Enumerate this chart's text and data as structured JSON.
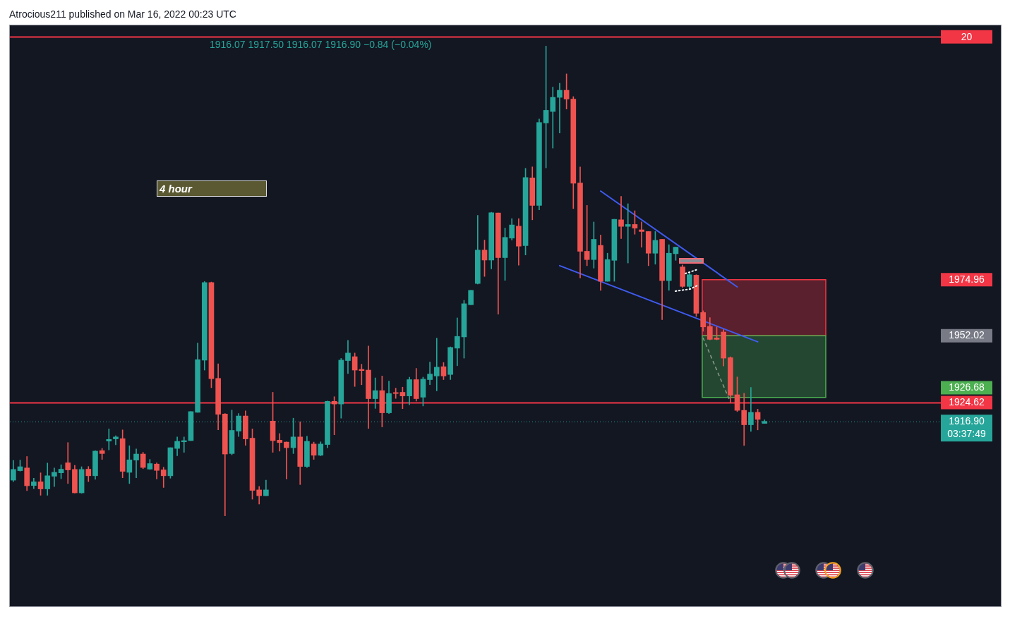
{
  "chart_data": {
    "type": "candlestick",
    "title": "Atrocious211 published on Mar 16, 2022 00:23 UTC",
    "categories": [
      null,
      null,
      null,
      null,
      null,
      null,
      null,
      null,
      null,
      null,
      null,
      null,
      null,
      null,
      null,
      null,
      null,
      null,
      null,
      null,
      null,
      null,
      null,
      null,
      null,
      null,
      null,
      null,
      null,
      null,
      null,
      null,
      null,
      null,
      null,
      null,
      null,
      null,
      null,
      null,
      null,
      null,
      null,
      null,
      null,
      null,
      null,
      null,
      null,
      null,
      null,
      null,
      null,
      null,
      null,
      null,
      null,
      null,
      null,
      null,
      null,
      null,
      null,
      null,
      null,
      null,
      null,
      null,
      null,
      null,
      null,
      null,
      null,
      null,
      null,
      null,
      null,
      null,
      null,
      null,
      null,
      null,
      null,
      null,
      null,
      null,
      null,
      null,
      null,
      null,
      null,
      null,
      null,
      null,
      null,
      null,
      null,
      null,
      null,
      null,
      null,
      null,
      null,
      null,
      null,
      null,
      null,
      null,
      null,
      null,
      null,
      null,
      null,
      null,
      null,
      null,
      null,
      null,
      null,
      null,
      null,
      null,
      null,
      null,
      null,
      null,
      null,
      null,
      null,
      null,
      null,
      null,
      null,
      null,
      null,
      null
    ],
    "ohlc": [
      [
        1892.8,
        1900.9,
        1892.2,
        1897.2
      ],
      [
        1896.7,
        1901.0,
        1896.5,
        1898.3
      ],
      [
        1897.8,
        1902.5,
        1888.5,
        1890.5
      ],
      [
        1890.6,
        1893.6,
        1889.3,
        1892.1
      ],
      [
        1892.1,
        1895.8,
        1886.6,
        1889.2
      ],
      [
        1889.2,
        1899.8,
        1886.6,
        1894.6
      ],
      [
        1894.4,
        1897.8,
        1890.2,
        1896.0
      ],
      [
        1895.8,
        1899.1,
        1893.4,
        1897.3
      ],
      [
        1899.9,
        1908.2,
        1891.4,
        1897.0
      ],
      [
        1897.2,
        1898.9,
        1887.5,
        1887.6
      ],
      [
        1887.6,
        1898.3,
        1887.4,
        1897.2
      ],
      [
        1897.3,
        1898.4,
        1892.2,
        1894.6
      ],
      [
        1894.6,
        1904.9,
        1893.1,
        1904.7
      ],
      [
        1904.9,
        1905.8,
        1901.3,
        1903.7
      ],
      [
        1908.8,
        1913.8,
        1905.2,
        1909.5
      ],
      [
        1909.7,
        1911.0,
        1907.3,
        1910.5
      ],
      [
        1909.8,
        1913.4,
        1893.8,
        1896.4
      ],
      [
        1896.0,
        1906.9,
        1891.4,
        1901.1
      ],
      [
        1901.0,
        1905.6,
        1893.8,
        1903.5
      ],
      [
        1903.5,
        1904.2,
        1897.5,
        1898.0
      ],
      [
        1897.3,
        1901.3,
        1897.2,
        1899.6
      ],
      [
        1899.4,
        1899.9,
        1893.3,
        1896.8
      ],
      [
        1897.0,
        1898.1,
        1889.8,
        1894.6
      ],
      [
        1894.6,
        1906.1,
        1893.6,
        1906.1
      ],
      [
        1905.8,
        1910.5,
        1902.8,
        1908.7
      ],
      [
        1908.5,
        1910.5,
        1904.2,
        1909.0
      ],
      [
        1909.0,
        1920.9,
        1909.0,
        1920.9
      ],
      [
        1920.6,
        1949.0,
        1920.6,
        1942.2
      ],
      [
        1942.0,
        1974.2,
        1937.9,
        1973.8
      ],
      [
        1973.8,
        1974.0,
        1930.7,
        1934.4
      ],
      [
        1934.5,
        1940.5,
        1913.4,
        1919.8
      ],
      [
        1919.9,
        1920.1,
        1878.2,
        1903.5
      ],
      [
        1903.7,
        1921.5,
        1903.2,
        1913.2
      ],
      [
        1912.9,
        1920.1,
        1910.7,
        1919.1
      ],
      [
        1919.1,
        1921.2,
        1907.1,
        1909.7
      ],
      [
        1910.0,
        1913.8,
        1885.0,
        1888.6
      ],
      [
        1888.8,
        1890.2,
        1883.0,
        1886.4
      ],
      [
        1886.4,
        1892.8,
        1886.4,
        1888.8
      ],
      [
        1917.0,
        1928.8,
        1904.2,
        1909.0
      ],
      [
        1909.2,
        1911.9,
        1904.7,
        1908.2
      ],
      [
        1908.4,
        1908.5,
        1893.3,
        1906.1
      ],
      [
        1906.1,
        1918.2,
        1903.7,
        1910.5
      ],
      [
        1910.5,
        1916.7,
        1891.0,
        1898.4
      ],
      [
        1898.4,
        1910.8,
        1898.0,
        1908.7
      ],
      [
        1907.6,
        1908.4,
        1901.3,
        1903.0
      ],
      [
        1903.0,
        1908.5,
        1902.8,
        1907.6
      ],
      [
        1907.4,
        1925.2,
        1906.1,
        1925.1
      ],
      [
        1925.1,
        1927.0,
        1911.4,
        1924.0
      ],
      [
        1924.0,
        1942.7,
        1918.2,
        1942.0
      ],
      [
        1941.8,
        1950.1,
        1936.5,
        1944.9
      ],
      [
        1943.4,
        1944.9,
        1931.2,
        1937.9
      ],
      [
        1938.2,
        1940.3,
        1931.9,
        1937.7
      ],
      [
        1937.9,
        1947.8,
        1914.0,
        1926.2
      ],
      [
        1926.2,
        1934.7,
        1922.2,
        1929.5
      ],
      [
        1929.5,
        1935.5,
        1914.6,
        1920.4
      ],
      [
        1920.4,
        1933.4,
        1920.1,
        1928.3
      ],
      [
        1928.7,
        1930.5,
        1926.3,
        1928.3
      ],
      [
        1928.8,
        1930.9,
        1922.1,
        1927.3
      ],
      [
        1927.3,
        1935.0,
        1923.7,
        1934.0
      ],
      [
        1934.0,
        1938.6,
        1925.2,
        1926.2
      ],
      [
        1926.8,
        1935.0,
        1923.2,
        1934.2
      ],
      [
        1934.0,
        1941.2,
        1931.9,
        1936.3
      ],
      [
        1935.5,
        1951.0,
        1929.4,
        1939.1
      ],
      [
        1939.3,
        1941.0,
        1934.0,
        1935.5
      ],
      [
        1936.1,
        1947.4,
        1934.0,
        1947.2
      ],
      [
        1946.9,
        1959.3,
        1939.7,
        1951.7
      ],
      [
        1951.5,
        1966.5,
        1942.8,
        1965.1
      ],
      [
        1964.7,
        1970.6,
        1964.7,
        1970.6
      ],
      [
        1973.4,
        2001.3,
        1973.2,
        1987.1
      ],
      [
        1987.1,
        1991.2,
        1976.3,
        1983.0
      ],
      [
        1983.0,
        2002.6,
        1979.4,
        2002.4
      ],
      [
        2002.3,
        2002.3,
        1960.8,
        1984.0
      ],
      [
        1984.0,
        1996.1,
        1974.7,
        1992.3
      ],
      [
        1992.0,
        2000.0,
        1991.2,
        1997.4
      ],
      [
        1996.9,
        2000.0,
        1980.9,
        1988.7
      ],
      [
        1988.9,
        2020.6,
        1985.1,
        2016.8
      ],
      [
        2016.7,
        2021.2,
        1999.5,
        2005.4
      ],
      [
        2005.4,
        2040.8,
        2003.6,
        2039.4
      ],
      [
        2039.2,
        2070.7,
        2020.8,
        2044.4
      ],
      [
        2043.9,
        2053.9,
        2028.9,
        2049.7
      ],
      [
        2049.7,
        2055.5,
        2035.1,
        2052.6
      ],
      [
        2052.6,
        2059.3,
        2044.9,
        2049.0
      ],
      [
        2049.0,
        2050.0,
        2004.1,
        2014.5
      ],
      [
        2014.6,
        2021.2,
        1975.7,
        1986.6
      ],
      [
        1986.6,
        2005.4,
        1980.7,
        1983.2
      ],
      [
        1983.2,
        1998.6,
        1979.7,
        1991.5
      ],
      [
        1989.0,
        1993.3,
        1970.6,
        1974.3
      ],
      [
        1974.3,
        1985.8,
        1974.3,
        1983.2
      ],
      [
        1982.9,
        1999.7,
        1974.3,
        1999.7
      ],
      [
        1999.5,
        2009.1,
        1991.8,
        1996.8
      ],
      [
        1996.8,
        2006.1,
        1981.8,
        1997.6
      ],
      [
        1997.6,
        2003.2,
        1993.6,
        1996.1
      ],
      [
        1995.4,
        1998.6,
        1988.3,
        1994.7
      ],
      [
        1994.7,
        1994.7,
        1980.7,
        1985.8
      ],
      [
        1985.8,
        1994.7,
        1981.3,
        1991.1
      ],
      [
        1991.5,
        1991.5,
        1958.6,
        1974.6
      ],
      [
        1974.6,
        1989.3,
        1970.6,
        1985.8
      ],
      [
        1985.6,
        1988.3,
        1982.9,
        1988.3
      ],
      [
        1980.2,
        1981.0,
        1971.7,
        1972.2
      ],
      [
        1972.2,
        1978.1,
        1971.1,
        1977.0
      ],
      [
        1976.8,
        1977.0,
        1959.9,
        1961.2
      ],
      [
        1961.5,
        1962.2,
        1953.8,
        1955.6
      ],
      [
        1955.8,
        1959.4,
        1950.3,
        1950.5
      ],
      [
        1951.1,
        1955.6,
        1950.3,
        1950.5
      ],
      [
        1953.5,
        1954.5,
        1939.6,
        1942.8
      ],
      [
        1943.0,
        1943.4,
        1924.6,
        1927.6
      ],
      [
        1927.8,
        1935.1,
        1920.9,
        1921.4
      ],
      [
        1921.4,
        1928.4,
        1907.0,
        1915.5
      ],
      [
        1915.5,
        1930.8,
        1912.8,
        1920.6
      ],
      [
        1920.6,
        1921.9,
        1913.4,
        1917.7
      ],
      [
        1916.07,
        1917.5,
        1916.07,
        1916.9
      ],
      null,
      null,
      null,
      null,
      null,
      null,
      null,
      null,
      null,
      null,
      null,
      null,
      null,
      null,
      null,
      null,
      null,
      null,
      null,
      null,
      null,
      null,
      null,
      null,
      null
    ],
    "series": [
      {
        "type": "line",
        "values": [
          null,
          null,
          null,
          null,
          null,
          null,
          null,
          null,
          null,
          null,
          null,
          null,
          null,
          null,
          null,
          null,
          null,
          null,
          null,
          null,
          null,
          null,
          null,
          null,
          null,
          null,
          null,
          null,
          null,
          null,
          null,
          null,
          null,
          null,
          null,
          null,
          null,
          null,
          null,
          null,
          null,
          null,
          null,
          null,
          null,
          null,
          null,
          null,
          null,
          null,
          null,
          null,
          null,
          null,
          null,
          null,
          null,
          null,
          null,
          null,
          null,
          null,
          null,
          null,
          null,
          null,
          null,
          null,
          null,
          null,
          null,
          null,
          null,
          null,
          null,
          null,
          null,
          null,
          null,
          null,
          null,
          null,
          null,
          null,
          null,
          null,
          2011.3,
          null,
          null,
          null,
          null,
          null,
          null,
          null,
          null,
          null,
          null,
          null,
          null,
          null,
          null,
          null,
          null,
          null,
          null,
          null,
          1972.0,
          null,
          null,
          null,
          null,
          null,
          null,
          null,
          null,
          null,
          null,
          null,
          null,
          null,
          null,
          null,
          null,
          null,
          null,
          null,
          null,
          null,
          null,
          null,
          null,
          null,
          null,
          null,
          null,
          null
        ],
        "color": "#3f5bf2"
      },
      {
        "type": "line",
        "values": [
          null,
          null,
          null,
          null,
          null,
          null,
          null,
          null,
          null,
          null,
          null,
          null,
          null,
          null,
          null,
          null,
          null,
          null,
          null,
          null,
          null,
          null,
          null,
          null,
          null,
          null,
          null,
          null,
          null,
          null,
          null,
          null,
          null,
          null,
          null,
          null,
          null,
          null,
          null,
          null,
          null,
          null,
          null,
          null,
          null,
          null,
          null,
          null,
          null,
          null,
          null,
          null,
          null,
          null,
          null,
          null,
          null,
          null,
          null,
          null,
          null,
          null,
          null,
          null,
          null,
          null,
          null,
          null,
          null,
          null,
          null,
          null,
          null,
          null,
          null,
          null,
          null,
          null,
          null,
          null,
          1980.7,
          null,
          null,
          null,
          null,
          null,
          null,
          null,
          null,
          null,
          null,
          null,
          null,
          null,
          null,
          null,
          null,
          null,
          null,
          null,
          null,
          null,
          null,
          null,
          null,
          null,
          null,
          null,
          null,
          1949.5,
          null,
          null,
          null,
          null,
          null,
          null,
          null,
          null,
          null,
          null,
          null,
          null,
          null,
          null,
          null,
          null,
          null,
          null,
          null,
          null,
          null,
          null,
          null,
          null,
          null,
          null
        ],
        "color": "#3f5bf2"
      }
    ],
    "ylim": [
      1841.1,
      2079.2
    ],
    "yticks": [
      1974.96,
      1952.02,
      1924.62,
      {
        "value": 1916.9,
        "label": "1916.90"
      }
    ],
    "ref_lines": [
      {
        "axis": "y",
        "value": 2074.5,
        "color": "#f23645"
      },
      {
        "axis": "y",
        "value": 1924.62,
        "color": "#f23645"
      },
      {
        "axis": "y",
        "value": 1916.9,
        "color": "#26a69a",
        "line_style": "dotted"
      }
    ],
    "bands": [
      {
        "axis": "y",
        "from": 1952.02,
        "to": 1974.96,
        "color": "#f23645"
      },
      {
        "axis": "y",
        "from": 1926.68,
        "to": 1952.02,
        "color": "#4caf50"
      }
    ],
    "annotations": [
      "1916.07 1917.50 1916.07 1916.90 −0.84 (−0.04%)",
      "4 hour",
      "03:37:49",
      "20",
      "1926.68"
    ],
    "tick_labels": "y"
  }
}
